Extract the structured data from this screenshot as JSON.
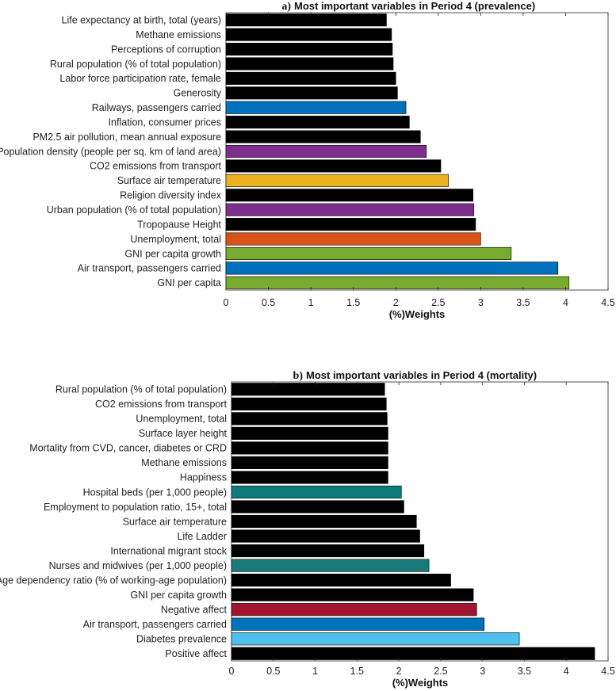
{
  "chart_data": [
    {
      "type": "bar",
      "orientation": "horizontal",
      "panel": "a)",
      "title": "Most important variables in Period 4 (prevalence)",
      "xlabel": "(%)Weights",
      "ylabel": "",
      "xlim": [
        0,
        4.5
      ],
      "xticks": [
        "0",
        "0.5",
        "1",
        "1.5",
        "2",
        "2.5",
        "3",
        "3.5",
        "4",
        "4.5"
      ],
      "grid": false,
      "categories": [
        "Life expectancy at birth, total (years)",
        "Methane emissions",
        "Perceptions of corruption",
        "Rural population (% of total population)",
        "Labor force participation rate, female",
        "Generosity",
        "Railways, passengers carried",
        "Inflation, consumer prices",
        "PM2.5 air pollution, mean annual exposure",
        "Population density (people per sq. km of land area)",
        "CO2 emissions from transport",
        "Surface air temperature",
        "Religion diversity index",
        "Urban population (% of total population)",
        "Tropopause Height",
        "Unemployment, total",
        "GNI per capita growth",
        "Air transport, passengers carried",
        "GNI per capita"
      ],
      "values": [
        1.89,
        1.95,
        1.96,
        1.97,
        2.0,
        2.02,
        2.12,
        2.16,
        2.29,
        2.36,
        2.53,
        2.62,
        2.91,
        2.92,
        2.94,
        3.0,
        3.36,
        3.91,
        4.04
      ],
      "colors": [
        "#000000",
        "#000000",
        "#000000",
        "#000000",
        "#000000",
        "#000000",
        "#0072BD",
        "#000000",
        "#000000",
        "#7E2F8E",
        "#000000",
        "#EDB120",
        "#000000",
        "#7E2F8E",
        "#000000",
        "#D95319",
        "#77AC30",
        "#0072BD",
        "#77AC30"
      ]
    },
    {
      "type": "bar",
      "orientation": "horizontal",
      "panel": "b)",
      "title": "Most important variables in Period 4 (mortality)",
      "xlabel": "(%)Weights",
      "ylabel": "",
      "xlim": [
        0,
        4.5
      ],
      "xticks": [
        "0",
        "0.5",
        "1",
        "1.5",
        "2",
        "2.5",
        "3",
        "3.5",
        "4",
        "4.5"
      ],
      "grid": false,
      "categories": [
        "Rural population (% of total population)",
        "CO2 emissions from transport",
        "Unemployment, total",
        "Surface layer height",
        "Mortality from CVD, cancer, diabetes or CRD",
        "Methane emissions",
        "Happiness",
        "Hospital beds (per 1,000 people)",
        "Employment to population ratio, 15+, total",
        "Surface air temperature",
        "Life Ladder",
        "International migrant stock",
        "Nurses and midwives (per 1,000 people)",
        "Age dependency ratio (% of working-age population)",
        "GNI per capita growth",
        "Negative affect",
        "Air transport, passengers carried",
        "Diabetes prevalence",
        "Positive affect"
      ],
      "values": [
        1.83,
        1.85,
        1.86,
        1.87,
        1.87,
        1.87,
        1.87,
        2.03,
        2.06,
        2.21,
        2.25,
        2.3,
        2.36,
        2.62,
        2.89,
        2.93,
        3.02,
        3.44,
        4.34
      ],
      "colors": [
        "#000000",
        "#000000",
        "#000000",
        "#000000",
        "#000000",
        "#000000",
        "#000000",
        "#0E7C7B",
        "#000000",
        "#000000",
        "#000000",
        "#000000",
        "#1A7A7A",
        "#000000",
        "#000000",
        "#A2142F",
        "#0072BD",
        "#4DBEEE",
        "#000000"
      ]
    }
  ]
}
